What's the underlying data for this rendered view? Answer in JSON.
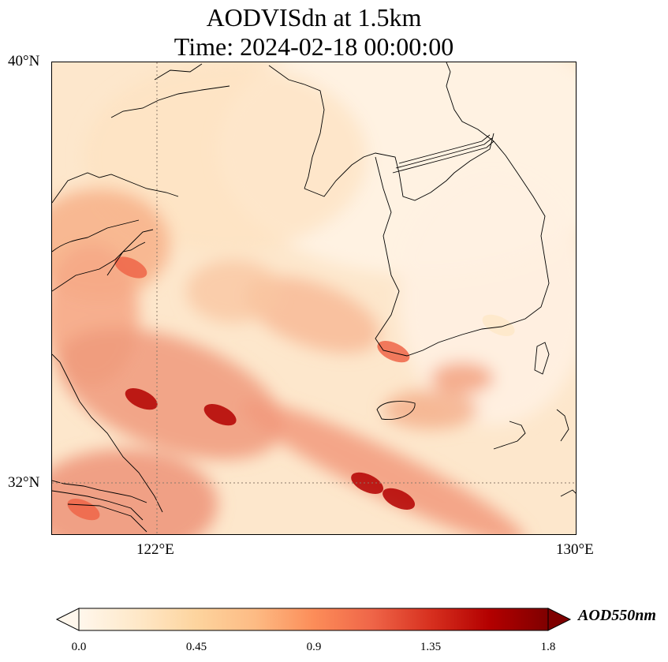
{
  "title": {
    "line1": "AODVISdn at 1.5km",
    "line2": "Time: 2024-02-18 00:00:00"
  },
  "map": {
    "extent": {
      "lon_min": 120,
      "lon_max": 130,
      "lat_min": 31,
      "lat_max": 40
    },
    "gridlines": {
      "lons": [
        122,
        130
      ],
      "lats": [
        32,
        40
      ],
      "style": "dotted"
    },
    "lon_ticks": [
      {
        "value": 122,
        "label": "122°E"
      },
      {
        "value": 130,
        "label": "130°E"
      }
    ],
    "lat_ticks": [
      {
        "value": 40,
        "label": "40°N"
      },
      {
        "value": 32,
        "label": "32°N"
      }
    ],
    "colormap": "OrRd",
    "hotspots_aod": [
      {
        "lon": 121.5,
        "lat": 36.1,
        "aod": 1.1
      },
      {
        "lon": 121.7,
        "lat": 33.6,
        "aod": 1.6
      },
      {
        "lon": 123.2,
        "lat": 33.3,
        "aod": 1.55
      },
      {
        "lon": 126.0,
        "lat": 32.0,
        "aod": 1.5
      },
      {
        "lon": 126.6,
        "lat": 31.7,
        "aod": 1.5
      },
      {
        "lon": 120.6,
        "lat": 31.5,
        "aod": 1.1
      },
      {
        "lon": 126.5,
        "lat": 34.5,
        "aod": 1.1
      },
      {
        "lon": 128.5,
        "lat": 35.0,
        "aod": 0.25
      }
    ]
  },
  "colorbar": {
    "label": "AOD550nm",
    "min": 0.0,
    "max": 1.8,
    "extend": "both",
    "ticks": [
      "0.0",
      "0.45",
      "0.9",
      "1.35",
      "1.8"
    ]
  }
}
